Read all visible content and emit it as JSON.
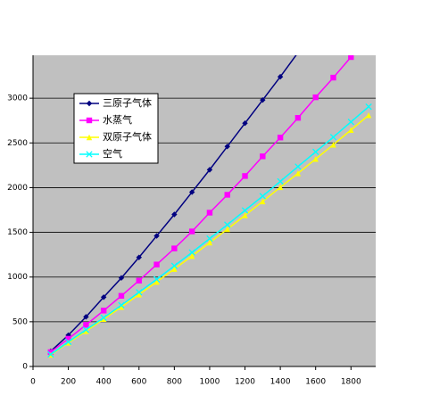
{
  "chart_data": {
    "type": "line",
    "xlim": [
      0,
      1940
    ],
    "xticks": [
      0,
      200,
      400,
      600,
      800,
      1000,
      1200,
      1400,
      1600,
      1800
    ],
    "ylim": [
      0,
      3480
    ],
    "yticks": [
      0,
      500,
      1000,
      1500,
      2000,
      2500,
      3000
    ],
    "grid": true,
    "legend": "upper-left",
    "series": [
      {
        "name": "三原子气体",
        "color": "#000080",
        "marker": "diamond",
        "x": [
          100,
          200,
          300,
          400,
          500,
          600,
          700,
          800,
          900,
          1000,
          1100,
          1200,
          1300,
          1400,
          1500
        ],
        "values": [
          170,
          350,
          555,
          775,
          990,
          1220,
          1460,
          1700,
          1950,
          2200,
          2460,
          2720,
          2980,
          3240,
          3510
        ]
      },
      {
        "name": "水蒸气",
        "color": "#ff00ff",
        "marker": "square",
        "x": [
          100,
          200,
          300,
          400,
          500,
          600,
          700,
          800,
          900,
          1000,
          1100,
          1200,
          1300,
          1400,
          1500,
          1600,
          1700,
          1800
        ],
        "values": [
          160,
          310,
          465,
          625,
          790,
          960,
          1140,
          1320,
          1510,
          1720,
          1920,
          2130,
          2350,
          2560,
          2780,
          3010,
          3230,
          3460
        ]
      },
      {
        "name": "双原子气体",
        "color": "#ffff00",
        "marker": "triangle",
        "x": [
          100,
          200,
          300,
          400,
          500,
          600,
          700,
          800,
          900,
          1000,
          1100,
          1200,
          1300,
          1400,
          1500,
          1600,
          1700,
          1800,
          1900
        ],
        "values": [
          130,
          265,
          395,
          530,
          665,
          805,
          945,
          1090,
          1235,
          1385,
          1535,
          1690,
          1845,
          2005,
          2160,
          2320,
          2480,
          2645,
          2810
        ]
      },
      {
        "name": "空气",
        "color": "#00ffff",
        "marker": "cross",
        "x": [
          100,
          200,
          300,
          400,
          500,
          600,
          700,
          800,
          900,
          1000,
          1100,
          1200,
          1300,
          1400,
          1500,
          1600,
          1700,
          1800,
          1900
        ],
        "values": [
          135,
          275,
          410,
          545,
          685,
          830,
          975,
          1125,
          1275,
          1430,
          1585,
          1745,
          1905,
          2070,
          2235,
          2400,
          2565,
          2735,
          2905
        ]
      }
    ]
  }
}
